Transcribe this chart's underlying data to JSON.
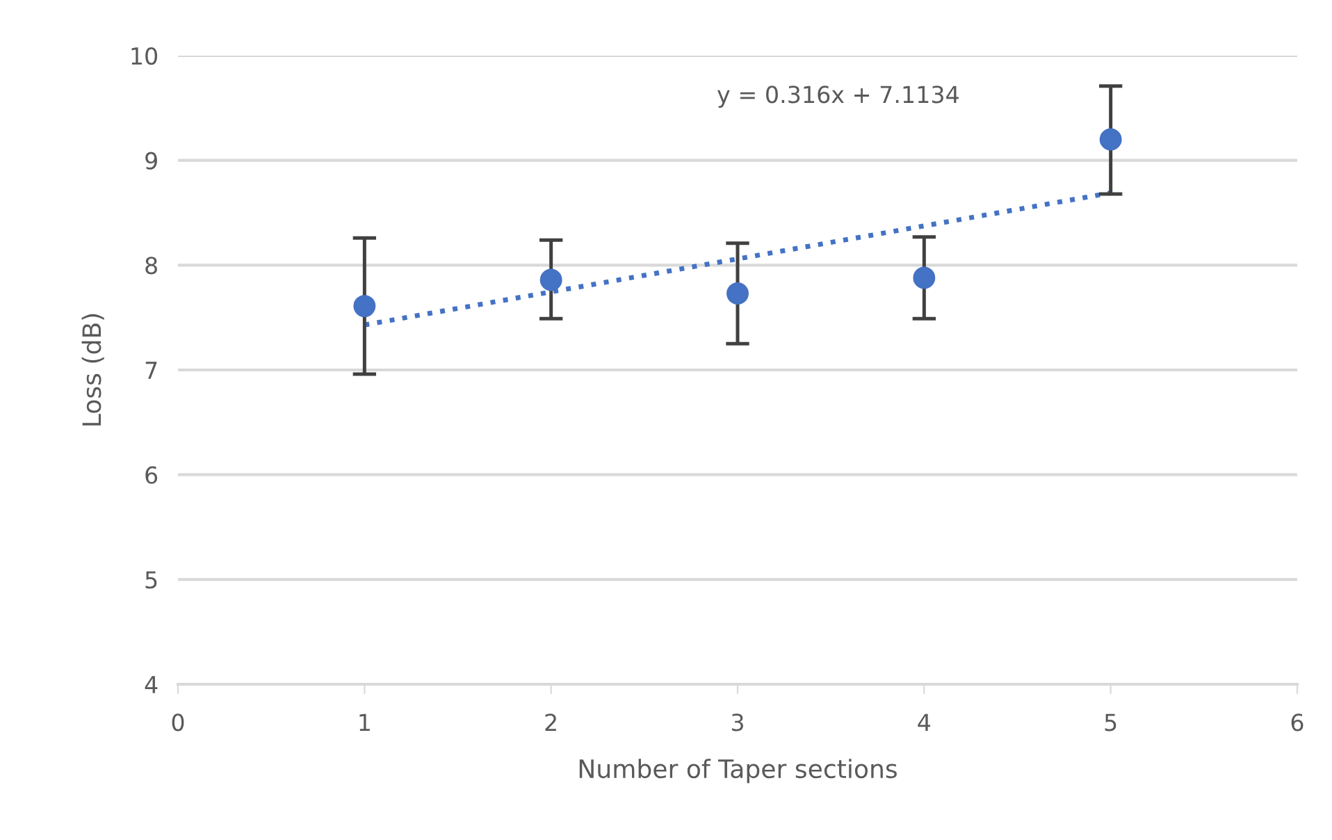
{
  "chart_data": {
    "type": "scatter",
    "xlabel": "Number of Taper sections",
    "ylabel": "Loss (dB)",
    "annotations": [
      "y = 0.316x + 7.1134"
    ],
    "x": [
      1,
      2,
      3,
      4,
      5
    ],
    "series": [
      {
        "color": "#4472c4",
        "values": [
          7.61,
          7.86,
          7.73,
          7.88,
          9.2
        ],
        "errors": [
          [
            6.96,
            8.26
          ],
          [
            7.49,
            8.24
          ],
          [
            7.25,
            8.21
          ],
          [
            7.49,
            8.27
          ],
          [
            8.68,
            9.71
          ]
        ],
        "marker": "circle"
      },
      {
        "type": "line",
        "color": "#4472c4",
        "x": [
          1,
          5
        ],
        "values": [
          7.43,
          8.69
        ],
        "line_style": "dotted",
        "marker": "none"
      }
    ],
    "xlim": [
      0,
      6
    ],
    "xticks": [
      0,
      1,
      2,
      3,
      4,
      5,
      6
    ],
    "ylim": [
      4,
      10
    ],
    "yticks": [
      4,
      5,
      6,
      7,
      8,
      9,
      10
    ],
    "grid": "y",
    "legend": false
  }
}
